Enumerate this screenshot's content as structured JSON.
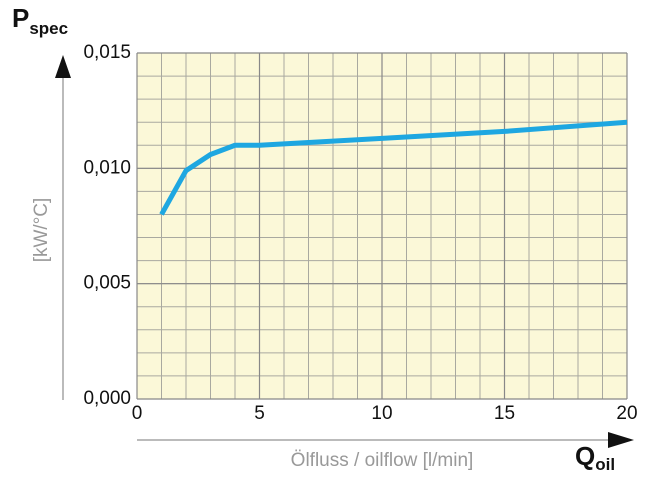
{
  "chart_data": {
    "type": "line",
    "ylabel_symbol": "P",
    "ylabel_subscript": "spec",
    "ylabel_unit": "[kW/°C]",
    "xlabel": "Ölfluss / oilflow [l/min]",
    "xlabel_symbol": "Q",
    "xlabel_subscript": "oil",
    "x": [
      1,
      2,
      3,
      4,
      5,
      10,
      15,
      20
    ],
    "series": [
      {
        "color": "#1ea7e1",
        "values": [
          0.008,
          0.0099,
          0.0106,
          0.011,
          0.011,
          0.0113,
          0.0116,
          0.012
        ]
      }
    ],
    "xlim": [
      0,
      20
    ],
    "ylim": [
      0,
      0.015
    ],
    "xticks": [
      0,
      5,
      10,
      15,
      20
    ],
    "yticks": [
      {
        "value": 0,
        "label": "0,000"
      },
      {
        "value": 0.005,
        "label": "0,005"
      },
      {
        "value": 0.01,
        "label": "0,010"
      },
      {
        "value": 0.015,
        "label": "0,015"
      }
    ],
    "xminor": 1,
    "yminor": 0.001,
    "grid": true,
    "background": "#fbf8d8"
  }
}
